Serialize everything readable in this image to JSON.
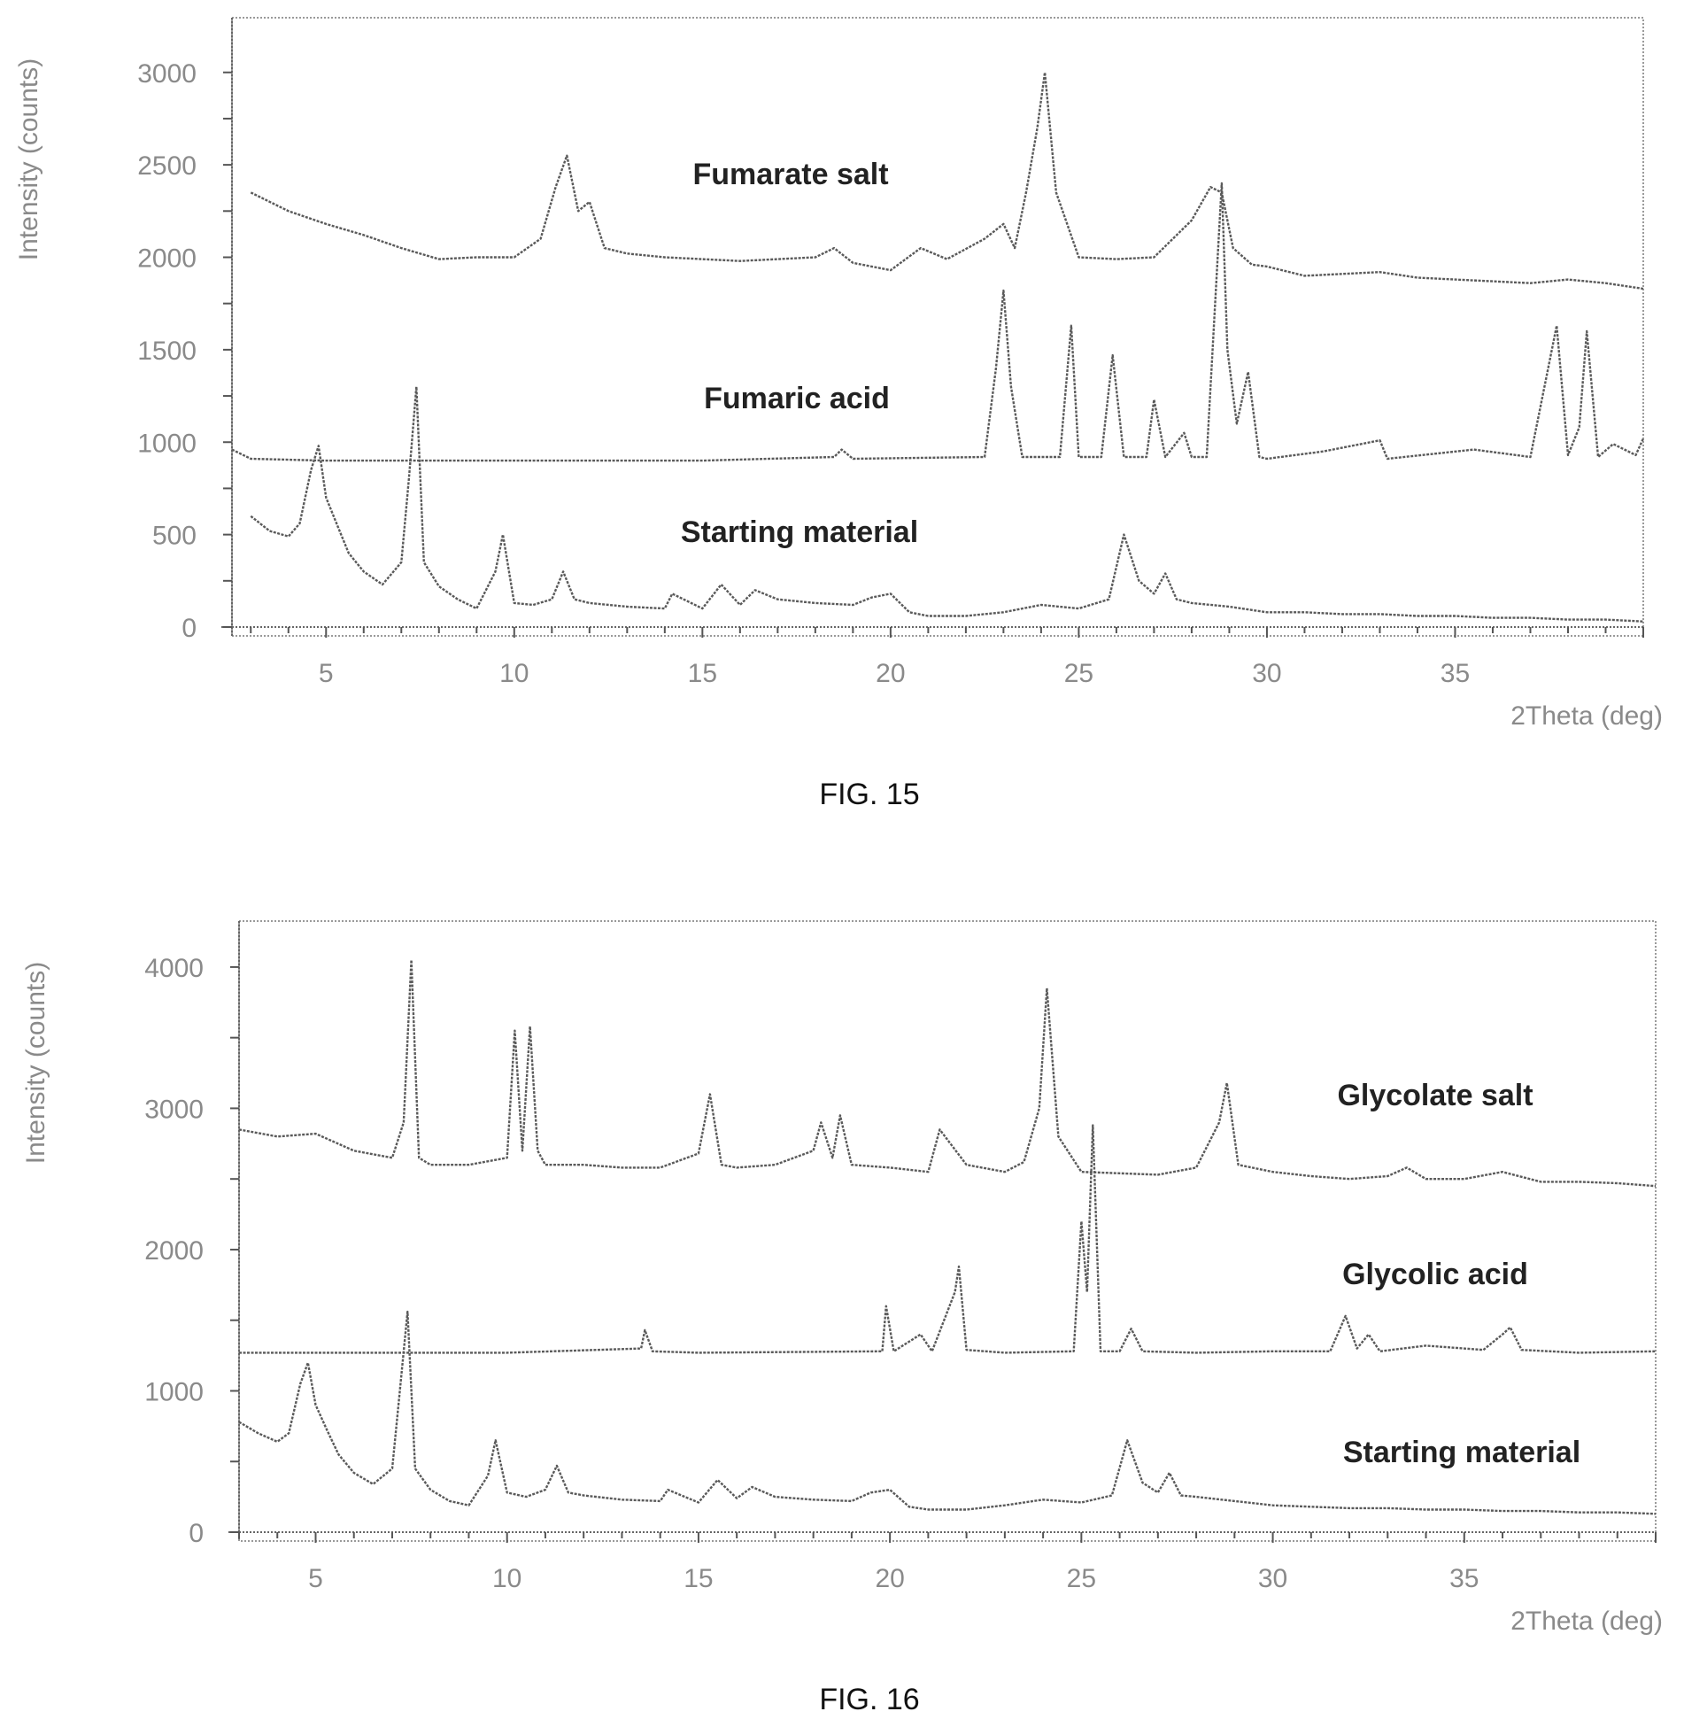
{
  "chart_data": [
    {
      "type": "line",
      "caption": "FIG. 15",
      "xlabel": "2Theta (deg)",
      "ylabel": "Intensity (counts)",
      "xlim": [
        2.5,
        40
      ],
      "ylim": [
        0,
        3200
      ],
      "xticks": [
        5,
        10,
        15,
        20,
        25,
        30,
        35
      ],
      "yticks": [
        0,
        500,
        1000,
        1500,
        2000,
        2500,
        3000
      ],
      "grid": false,
      "series": [
        {
          "name": "Fumarate salt",
          "x": [
            3,
            4,
            5,
            6,
            7,
            8,
            9,
            10,
            10.7,
            11.1,
            11.4,
            11.7,
            12.0,
            12.4,
            13,
            14,
            15,
            16,
            17,
            18,
            18.5,
            19,
            20,
            20.8,
            21.5,
            22.5,
            23,
            23.3,
            23.6,
            23.9,
            24.1,
            24.4,
            25,
            26,
            27,
            28,
            28.5,
            28.8,
            29.1,
            29.6,
            30,
            31,
            32,
            33,
            34,
            35,
            36,
            37,
            38,
            39,
            40
          ],
          "y": [
            2350,
            2250,
            2180,
            2120,
            2050,
            1990,
            2000,
            2000,
            2100,
            2380,
            2550,
            2250,
            2300,
            2050,
            2020,
            2000,
            1990,
            1980,
            1990,
            2000,
            2050,
            1970,
            1930,
            2050,
            1990,
            2100,
            2180,
            2050,
            2350,
            2700,
            3000,
            2350,
            2000,
            1990,
            2000,
            2200,
            2380,
            2350,
            2050,
            1960,
            1950,
            1900,
            1910,
            1920,
            1890,
            1880,
            1870,
            1860,
            1880,
            1860,
            1830
          ]
        },
        {
          "name": "Fumaric acid",
          "x": [
            2.5,
            3,
            5,
            10,
            15,
            18.5,
            18.7,
            19,
            22.5,
            22.8,
            23.0,
            23.2,
            23.5,
            24.5,
            24.8,
            25,
            25.6,
            25.9,
            26.2,
            26.8,
            27,
            27.3,
            27.8,
            28,
            28.4,
            28.8,
            28.95,
            29.2,
            29.5,
            29.8,
            30,
            31.5,
            33,
            33.2,
            35.5,
            37,
            37.7,
            38,
            38.3,
            38.5,
            38.8,
            39.2,
            39.8,
            40
          ],
          "y": [
            960,
            910,
            900,
            900,
            900,
            920,
            960,
            910,
            920,
            1400,
            1820,
            1300,
            920,
            920,
            1630,
            920,
            920,
            1470,
            920,
            920,
            1230,
            920,
            1050,
            920,
            920,
            2400,
            1500,
            1100,
            1380,
            920,
            910,
            950,
            1010,
            910,
            960,
            920,
            1630,
            930,
            1080,
            1600,
            920,
            990,
            930,
            1020
          ]
        },
        {
          "name": "Starting material",
          "x": [
            3,
            3.5,
            4,
            4.3,
            4.6,
            4.8,
            5.0,
            5.3,
            5.6,
            6,
            6.5,
            7,
            7.2,
            7.4,
            7.6,
            8,
            8.5,
            9,
            9.5,
            9.7,
            10,
            10.5,
            11,
            11.3,
            11.6,
            12,
            13,
            14,
            14.2,
            15,
            15.5,
            16,
            16.4,
            17,
            18,
            19,
            19.5,
            20,
            20.5,
            21,
            22,
            23,
            24,
            25,
            25.8,
            26.2,
            26.6,
            27,
            27.3,
            27.6,
            28,
            29,
            30,
            31,
            32,
            33,
            34,
            35,
            36,
            37,
            38,
            39,
            40
          ],
          "y": [
            600,
            520,
            490,
            560,
            850,
            980,
            700,
            550,
            400,
            300,
            230,
            350,
            800,
            1300,
            350,
            220,
            150,
            100,
            300,
            500,
            130,
            120,
            150,
            300,
            150,
            130,
            110,
            100,
            180,
            100,
            230,
            120,
            200,
            150,
            130,
            120,
            160,
            180,
            80,
            60,
            60,
            80,
            120,
            100,
            150,
            500,
            250,
            180,
            290,
            150,
            130,
            110,
            80,
            80,
            70,
            70,
            60,
            60,
            50,
            50,
            40,
            40,
            30
          ]
        }
      ]
    },
    {
      "type": "line",
      "caption": "FIG. 16",
      "xlabel": "2Theta (deg)",
      "ylabel": "Intensity (counts)",
      "xlim": [
        3,
        40
      ],
      "ylim": [
        0,
        4200
      ],
      "xticks": [
        5,
        10,
        15,
        20,
        25,
        30,
        35
      ],
      "yticks": [
        0,
        1000,
        2000,
        3000,
        4000
      ],
      "grid": false,
      "series": [
        {
          "name": "Glycolate salt",
          "x": [
            3,
            4,
            5,
            6,
            7,
            7.3,
            7.5,
            7.7,
            8,
            9,
            10,
            10.2,
            10.4,
            10.6,
            10.8,
            11,
            12,
            13,
            14,
            15,
            15.3,
            15.6,
            16,
            17,
            18,
            18.2,
            18.5,
            18.7,
            19,
            20,
            21,
            21.3,
            22,
            23,
            23.5,
            23.9,
            24.1,
            24.4,
            25,
            26,
            27,
            28,
            28.6,
            28.8,
            29.1,
            30,
            31,
            32,
            33,
            33.5,
            34,
            35,
            36,
            37,
            38,
            39,
            40
          ],
          "y": [
            2850,
            2800,
            2820,
            2700,
            2650,
            2900,
            4050,
            2650,
            2600,
            2600,
            2650,
            3550,
            2700,
            3580,
            2700,
            2600,
            2600,
            2580,
            2580,
            2680,
            3100,
            2600,
            2580,
            2600,
            2700,
            2900,
            2650,
            2950,
            2600,
            2580,
            2550,
            2850,
            2600,
            2550,
            2620,
            3000,
            3850,
            2800,
            2550,
            2540,
            2530,
            2580,
            2900,
            3180,
            2600,
            2550,
            2520,
            2500,
            2520,
            2580,
            2500,
            2500,
            2550,
            2480,
            2480,
            2470,
            2450
          ]
        },
        {
          "name": "Glycolic acid",
          "x": [
            3,
            5,
            10,
            13.5,
            13.6,
            13.8,
            15,
            19.8,
            19.9,
            20.1,
            20.8,
            21.1,
            21.7,
            21.8,
            22,
            23,
            24.8,
            25.0,
            25.15,
            25.3,
            25.5,
            26,
            26.3,
            26.6,
            28,
            30,
            31.5,
            31.9,
            32.2,
            32.5,
            32.8,
            34,
            35.5,
            36,
            36.2,
            36.5,
            38,
            40
          ],
          "y": [
            1270,
            1270,
            1270,
            1300,
            1430,
            1280,
            1270,
            1280,
            1600,
            1280,
            1400,
            1280,
            1700,
            1880,
            1290,
            1270,
            1280,
            2200,
            1700,
            2880,
            1280,
            1280,
            1440,
            1280,
            1270,
            1280,
            1280,
            1530,
            1300,
            1400,
            1280,
            1320,
            1290,
            1400,
            1450,
            1290,
            1270,
            1280
          ]
        },
        {
          "name": "Starting material",
          "x": [
            3,
            3.5,
            4,
            4.3,
            4.6,
            4.8,
            5.0,
            5.3,
            5.6,
            6,
            6.5,
            7,
            7.2,
            7.4,
            7.6,
            8,
            8.5,
            9,
            9.5,
            9.7,
            10,
            10.5,
            11,
            11.3,
            11.6,
            12,
            13,
            14,
            14.2,
            15,
            15.5,
            16,
            16.4,
            17,
            18,
            19,
            19.5,
            20,
            20.5,
            21,
            22,
            23,
            24,
            25,
            25.8,
            26.2,
            26.6,
            27,
            27.3,
            27.6,
            28,
            29,
            30,
            31,
            32,
            33,
            34,
            35,
            36,
            37,
            38,
            39,
            40
          ],
          "y": [
            780,
            700,
            640,
            700,
            1050,
            1200,
            900,
            720,
            550,
            420,
            340,
            450,
            1000,
            1560,
            450,
            300,
            220,
            190,
            400,
            650,
            280,
            250,
            300,
            470,
            280,
            260,
            230,
            220,
            300,
            210,
            370,
            240,
            320,
            250,
            230,
            220,
            280,
            300,
            180,
            160,
            160,
            190,
            230,
            210,
            260,
            650,
            350,
            280,
            420,
            260,
            250,
            220,
            190,
            180,
            170,
            170,
            160,
            160,
            150,
            150,
            140,
            140,
            130
          ]
        }
      ]
    }
  ]
}
